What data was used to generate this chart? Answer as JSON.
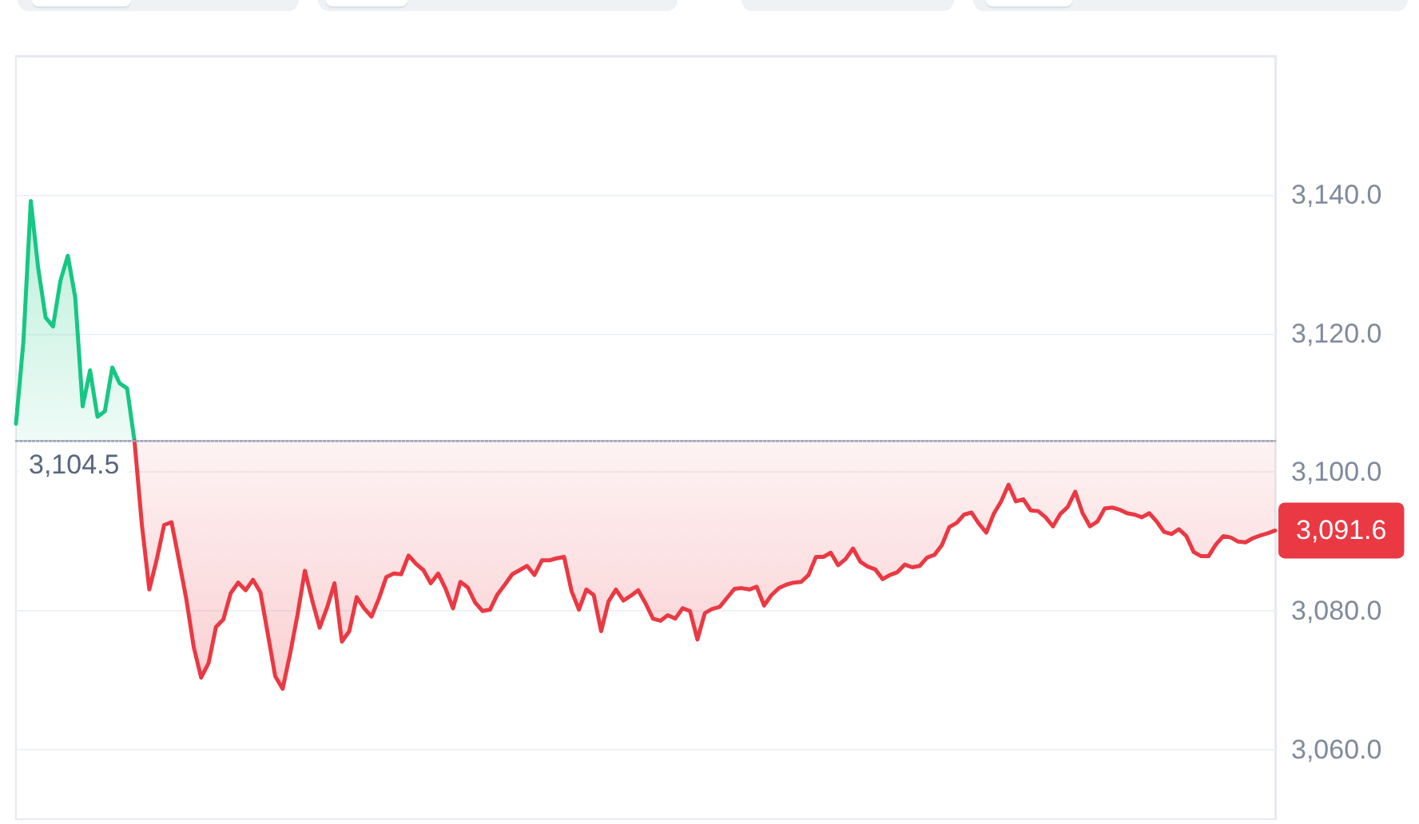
{
  "chart_data": {
    "type": "line",
    "categories": [
      null,
      null,
      null,
      null,
      null,
      null,
      null,
      null,
      null,
      null,
      null,
      null,
      null,
      null,
      null,
      null,
      null,
      null,
      null,
      null,
      null,
      null,
      null,
      null,
      null,
      null,
      null,
      null,
      null,
      null,
      null,
      null,
      null,
      null,
      null,
      null,
      null,
      null,
      null,
      null,
      null,
      null,
      null,
      null,
      null,
      null,
      null,
      null,
      null,
      null,
      null,
      null,
      null,
      null,
      null,
      null,
      null,
      null,
      null,
      null,
      null,
      null,
      null,
      null,
      null,
      null,
      null,
      null,
      null,
      null,
      null,
      null,
      null,
      null,
      null,
      null,
      null,
      null,
      null,
      null,
      null,
      null,
      null,
      null,
      null,
      null,
      null,
      null,
      null,
      null,
      null,
      null,
      null,
      null,
      null,
      null,
      null,
      null,
      null,
      null,
      null,
      null,
      null,
      null,
      null,
      null,
      null,
      null,
      null,
      null,
      null,
      null,
      null,
      null,
      null,
      null,
      null,
      null,
      null,
      null,
      null,
      null,
      null,
      null,
      null,
      null,
      null,
      null,
      null,
      null,
      null,
      null,
      null,
      null,
      null,
      null,
      null,
      null,
      null,
      null,
      null,
      null,
      null,
      null,
      null,
      null,
      null,
      null,
      null,
      null,
      null,
      null,
      null,
      null,
      null,
      null,
      null,
      null,
      null,
      null,
      null,
      null,
      null,
      null,
      null,
      null,
      null,
      null,
      null,
      null,
      null
    ],
    "series": [
      {
        "color": "#16c784",
        "values": [
          3107.0,
          3118.8,
          3139.1,
          3129.4,
          3122.3,
          3121.0,
          3127.6,
          3131.2,
          3125.2,
          3109.5,
          3114.7,
          3108.0,
          3108.8,
          3115.1,
          3112.8,
          3112.1,
          3104.5,
          null,
          null,
          null,
          null,
          null,
          null,
          null,
          null,
          null,
          null,
          null,
          null,
          null,
          null,
          null,
          null,
          null,
          null,
          null,
          null,
          null,
          null,
          null,
          null,
          null,
          null,
          null,
          null,
          null,
          null,
          null,
          null,
          null,
          null,
          null,
          null,
          null,
          null,
          null,
          null,
          null,
          null,
          null,
          null,
          null,
          null,
          null,
          null,
          null,
          null,
          null,
          null,
          null,
          null,
          null,
          null,
          null,
          null,
          null,
          null,
          null,
          null,
          null,
          null,
          null,
          null,
          null,
          null,
          null,
          null,
          null,
          null,
          null,
          null,
          null,
          null,
          null,
          null,
          null,
          null,
          null,
          null,
          null,
          null,
          null,
          null,
          null,
          null,
          null,
          null,
          null,
          null,
          null,
          null,
          null,
          null,
          null,
          null,
          null,
          null,
          null,
          null,
          null,
          null,
          null,
          null,
          null,
          null,
          null,
          null,
          null,
          null,
          null,
          null,
          null,
          null,
          null,
          null,
          null,
          null,
          null,
          null,
          null,
          null,
          null,
          null,
          null,
          null,
          null,
          null,
          null,
          null,
          null,
          null,
          null,
          null,
          null,
          null,
          null,
          null,
          null,
          null,
          null,
          null,
          null,
          null,
          null,
          null,
          null,
          null,
          null,
          null,
          null,
          null
        ],
        "lower": [
          3104.5,
          3104.5,
          3104.5,
          3104.5,
          3104.5,
          3104.5,
          3104.5,
          3104.5,
          3104.5,
          3104.5,
          3104.5,
          3104.5,
          3104.5,
          3104.5,
          3104.5,
          3104.5,
          3104.5,
          null,
          null,
          null,
          null,
          null,
          null,
          null,
          null,
          null,
          null,
          null,
          null,
          null,
          null,
          null,
          null,
          null,
          null,
          null,
          null,
          null,
          null,
          null,
          null,
          null,
          null,
          null,
          null,
          null,
          null,
          null,
          null,
          null,
          null,
          null,
          null,
          null,
          null,
          null,
          null,
          null,
          null,
          null,
          null,
          null,
          null,
          null,
          null,
          null,
          null,
          null,
          null,
          null,
          null,
          null,
          null,
          null,
          null,
          null,
          null,
          null,
          null,
          null,
          null,
          null,
          null,
          null,
          null,
          null,
          null,
          null,
          null,
          null,
          null,
          null,
          null,
          null,
          null,
          null,
          null,
          null,
          null,
          null,
          null,
          null,
          null,
          null,
          null,
          null,
          null,
          null,
          null,
          null,
          null,
          null,
          null,
          null,
          null,
          null,
          null,
          null,
          null,
          null,
          null,
          null,
          null,
          null,
          null,
          null,
          null,
          null,
          null,
          null,
          null,
          null,
          null,
          null,
          null,
          null,
          null,
          null,
          null,
          null,
          null,
          null,
          null,
          null,
          null,
          null,
          null,
          null,
          null,
          null,
          null,
          null,
          null,
          null,
          null,
          null,
          null,
          null,
          null,
          null,
          null,
          null,
          null,
          null,
          null,
          null,
          null,
          null,
          null,
          null,
          null
        ],
        "upper": [
          3107.0,
          3118.8,
          3139.1,
          3129.4,
          3122.3,
          3121.0,
          3127.6,
          3131.2,
          3125.2,
          3109.5,
          3114.7,
          3108.0,
          3108.8,
          3115.1,
          3112.8,
          3112.1,
          3104.5,
          null,
          null,
          null,
          null,
          null,
          null,
          null,
          null,
          null,
          null,
          null,
          null,
          null,
          null,
          null,
          null,
          null,
          null,
          null,
          null,
          null,
          null,
          null,
          null,
          null,
          null,
          null,
          null,
          null,
          null,
          null,
          null,
          null,
          null,
          null,
          null,
          null,
          null,
          null,
          null,
          null,
          null,
          null,
          null,
          null,
          null,
          null,
          null,
          null,
          null,
          null,
          null,
          null,
          null,
          null,
          null,
          null,
          null,
          null,
          null,
          null,
          null,
          null,
          null,
          null,
          null,
          null,
          null,
          null,
          null,
          null,
          null,
          null,
          null,
          null,
          null,
          null,
          null,
          null,
          null,
          null,
          null,
          null,
          null,
          null,
          null,
          null,
          null,
          null,
          null,
          null,
          null,
          null,
          null,
          null,
          null,
          null,
          null,
          null,
          null,
          null,
          null,
          null,
          null,
          null,
          null,
          null,
          null,
          null,
          null,
          null,
          null,
          null,
          null,
          null,
          null,
          null,
          null,
          null,
          null,
          null,
          null,
          null,
          null,
          null,
          null,
          null,
          null,
          null,
          null,
          null,
          null,
          null,
          null,
          null,
          null,
          null,
          null,
          null,
          null,
          null,
          null,
          null,
          null,
          null,
          null,
          null,
          null,
          null,
          null,
          null,
          null,
          null,
          null
        ]
      },
      {
        "color": "#ea3943",
        "values": [
          null,
          null,
          null,
          null,
          null,
          null,
          null,
          null,
          null,
          null,
          null,
          null,
          null,
          null,
          null,
          null,
          3104.5,
          3092.4,
          3083.1,
          3087.4,
          3092.4,
          3092.8,
          3087.3,
          3081.7,
          3074.8,
          3070.4,
          3072.5,
          3077.7,
          3078.8,
          3082.6,
          3084.1,
          3083.0,
          3084.5,
          3082.7,
          3076.7,
          3070.6,
          3068.8,
          3073.8,
          3079.4,
          3085.8,
          3081.5,
          3077.6,
          3080.5,
          3084.0,
          3075.6,
          3077.1,
          3082.0,
          3080.4,
          3079.2,
          3081.8,
          3084.9,
          3085.4,
          3085.3,
          3088.0,
          3086.8,
          3085.9,
          3084.0,
          3085.4,
          3083.2,
          3080.4,
          3084.2,
          3083.4,
          3081.2,
          3080.0,
          3080.2,
          3082.4,
          3083.8,
          3085.3,
          3085.9,
          3086.5,
          3085.2,
          3087.3,
          3087.3,
          3087.6,
          3087.8,
          3082.9,
          3080.2,
          3083.1,
          3082.3,
          3077.1,
          3081.4,
          3083.1,
          3081.5,
          3082.2,
          3083.0,
          3081.1,
          3078.9,
          3078.6,
          3079.4,
          3078.9,
          3080.4,
          3080.0,
          3075.9,
          3079.7,
          3080.3,
          3080.6,
          3081.9,
          3083.2,
          3083.3,
          3083.1,
          3083.5,
          3080.8,
          3082.3,
          3083.3,
          3083.8,
          3084.1,
          3084.2,
          3085.2,
          3087.8,
          3087.8,
          3088.4,
          3086.6,
          3087.5,
          3089.0,
          3087.1,
          3086.4,
          3086.0,
          3084.6,
          3085.2,
          3085.6,
          3086.7,
          3086.3,
          3086.5,
          3087.7,
          3088.1,
          3089.5,
          3092.1,
          3092.7,
          3093.9,
          3094.2,
          3092.6,
          3091.3,
          3094.0,
          3095.8,
          3098.2,
          3095.8,
          3096.1,
          3094.5,
          3094.4,
          3093.5,
          3092.2,
          3094.0,
          3095.0,
          3097.2,
          3094.1,
          3092.2,
          3092.9,
          3094.8,
          3094.9,
          3094.6,
          3094.1,
          3093.9,
          3093.5,
          3094.1,
          3092.9,
          3091.4,
          3091.1,
          3091.8,
          3090.8,
          3088.5,
          3087.9,
          3087.9,
          3089.6,
          3090.8,
          3090.6,
          3090.0,
          3089.9,
          3090.5,
          3090.9,
          3091.2,
          3091.6
        ],
        "lower": [
          null,
          null,
          null,
          null,
          null,
          null,
          null,
          null,
          null,
          null,
          null,
          null,
          null,
          null,
          null,
          null,
          3104.5,
          3092.4,
          3083.1,
          3087.4,
          3092.4,
          3092.8,
          3087.3,
          3081.7,
          3074.8,
          3070.4,
          3072.5,
          3077.7,
          3078.8,
          3082.6,
          3084.1,
          3083.0,
          3084.5,
          3082.7,
          3076.7,
          3070.6,
          3068.8,
          3073.8,
          3079.4,
          3085.8,
          3081.5,
          3077.6,
          3080.5,
          3084.0,
          3075.6,
          3077.1,
          3082.0,
          3080.4,
          3079.2,
          3081.8,
          3084.9,
          3085.4,
          3085.3,
          3088.0,
          3086.8,
          3085.9,
          3084.0,
          3085.4,
          3083.2,
          3080.4,
          3084.2,
          3083.4,
          3081.2,
          3080.0,
          3080.2,
          3082.4,
          3083.8,
          3085.3,
          3085.9,
          3086.5,
          3085.2,
          3087.3,
          3087.3,
          3087.6,
          3087.8,
          3082.9,
          3080.2,
          3083.1,
          3082.3,
          3077.1,
          3081.4,
          3083.1,
          3081.5,
          3082.2,
          3083.0,
          3081.1,
          3078.9,
          3078.6,
          3079.4,
          3078.9,
          3080.4,
          3080.0,
          3075.9,
          3079.7,
          3080.3,
          3080.6,
          3081.9,
          3083.2,
          3083.3,
          3083.1,
          3083.5,
          3080.8,
          3082.3,
          3083.3,
          3083.8,
          3084.1,
          3084.2,
          3085.2,
          3087.8,
          3087.8,
          3088.4,
          3086.6,
          3087.5,
          3089.0,
          3087.1,
          3086.4,
          3086.0,
          3084.6,
          3085.2,
          3085.6,
          3086.7,
          3086.3,
          3086.5,
          3087.7,
          3088.1,
          3089.5,
          3092.1,
          3092.7,
          3093.9,
          3094.2,
          3092.6,
          3091.3,
          3094.0,
          3095.8,
          3098.2,
          3095.8,
          3096.1,
          3094.5,
          3094.4,
          3093.5,
          3092.2,
          3094.0,
          3095.0,
          3097.2,
          3094.1,
          3092.2,
          3092.9,
          3094.8,
          3094.9,
          3094.6,
          3094.1,
          3093.9,
          3093.5,
          3094.1,
          3092.9,
          3091.4,
          3091.1,
          3091.8,
          3090.8,
          3088.5,
          3087.9,
          3087.9,
          3089.6,
          3090.8,
          3090.6,
          3090.0,
          3089.9,
          3090.5,
          3090.9,
          3091.2,
          3091.6
        ],
        "upper": [
          null,
          null,
          null,
          null,
          null,
          null,
          null,
          null,
          null,
          null,
          null,
          null,
          null,
          null,
          null,
          null,
          3104.5,
          3104.5,
          3104.5,
          3104.5,
          3104.5,
          3104.5,
          3104.5,
          3104.5,
          3104.5,
          3104.5,
          3104.5,
          3104.5,
          3104.5,
          3104.5,
          3104.5,
          3104.5,
          3104.5,
          3104.5,
          3104.5,
          3104.5,
          3104.5,
          3104.5,
          3104.5,
          3104.5,
          3104.5,
          3104.5,
          3104.5,
          3104.5,
          3104.5,
          3104.5,
          3104.5,
          3104.5,
          3104.5,
          3104.5,
          3104.5,
          3104.5,
          3104.5,
          3104.5,
          3104.5,
          3104.5,
          3104.5,
          3104.5,
          3104.5,
          3104.5,
          3104.5,
          3104.5,
          3104.5,
          3104.5,
          3104.5,
          3104.5,
          3104.5,
          3104.5,
          3104.5,
          3104.5,
          3104.5,
          3104.5,
          3104.5,
          3104.5,
          3104.5,
          3104.5,
          3104.5,
          3104.5,
          3104.5,
          3104.5,
          3104.5,
          3104.5,
          3104.5,
          3104.5,
          3104.5,
          3104.5,
          3104.5,
          3104.5,
          3104.5,
          3104.5,
          3104.5,
          3104.5,
          3104.5,
          3104.5,
          3104.5,
          3104.5,
          3104.5,
          3104.5,
          3104.5,
          3104.5,
          3104.5,
          3104.5,
          3104.5,
          3104.5,
          3104.5,
          3104.5,
          3104.5,
          3104.5,
          3104.5,
          3104.5,
          3104.5,
          3104.5,
          3104.5,
          3104.5,
          3104.5,
          3104.5,
          3104.5,
          3104.5,
          3104.5,
          3104.5,
          3104.5,
          3104.5,
          3104.5,
          3104.5,
          3104.5,
          3104.5,
          3104.5,
          3104.5,
          3104.5,
          3104.5,
          3104.5,
          3104.5,
          3104.5,
          3104.5,
          3104.5,
          3104.5,
          3104.5,
          3104.5,
          3104.5,
          3104.5,
          3104.5,
          3104.5,
          3104.5,
          3104.5,
          3104.5,
          3104.5,
          3104.5,
          3104.5,
          3104.5,
          3104.5,
          3104.5,
          3104.5,
          3104.5,
          3104.5,
          3104.5,
          3104.5,
          3104.5,
          3104.5,
          3104.5,
          3104.5,
          3104.5,
          3104.5,
          3104.5,
          3104.5,
          3104.5,
          3104.5,
          3104.5,
          3104.5,
          3104.5,
          3104.5,
          3104.5
        ],
        "value_labels": [
          null,
          null,
          null,
          null,
          null,
          null,
          null,
          null,
          null,
          null,
          null,
          null,
          null,
          null,
          null,
          null,
          null,
          null,
          null,
          null,
          null,
          null,
          null,
          null,
          null,
          null,
          null,
          null,
          null,
          null,
          null,
          null,
          null,
          null,
          null,
          null,
          null,
          null,
          null,
          null,
          null,
          null,
          null,
          null,
          null,
          null,
          null,
          null,
          null,
          null,
          null,
          null,
          null,
          null,
          null,
          null,
          null,
          null,
          null,
          null,
          null,
          null,
          null,
          null,
          null,
          null,
          null,
          null,
          null,
          null,
          null,
          null,
          null,
          null,
          null,
          null,
          null,
          null,
          null,
          null,
          null,
          null,
          null,
          null,
          null,
          null,
          null,
          null,
          null,
          null,
          null,
          null,
          null,
          null,
          null,
          null,
          null,
          null,
          null,
          null,
          null,
          null,
          null,
          null,
          null,
          null,
          null,
          null,
          null,
          null,
          null,
          null,
          null,
          null,
          null,
          null,
          null,
          null,
          null,
          null,
          null,
          null,
          null,
          null,
          null,
          null,
          null,
          null,
          null,
          null,
          null,
          null,
          null,
          null,
          null,
          null,
          null,
          null,
          null,
          null,
          null,
          null,
          null,
          null,
          null,
          null,
          null,
          null,
          null,
          null,
          null,
          null,
          null,
          null,
          null,
          null,
          null,
          null,
          null,
          null,
          null,
          null,
          null,
          null,
          null,
          null,
          null,
          null,
          null,
          null,
          "3,091.6"
        ]
      },
      {
        "color": "#a1a7bb",
        "line_style": "dotted",
        "values": [
          3104.5,
          3104.5,
          3104.5,
          3104.5,
          3104.5,
          3104.5,
          3104.5,
          3104.5,
          3104.5,
          3104.5,
          3104.5,
          3104.5,
          3104.5,
          3104.5,
          3104.5,
          3104.5,
          3104.5,
          3104.5,
          3104.5,
          3104.5,
          3104.5,
          3104.5,
          3104.5,
          3104.5,
          3104.5,
          3104.5,
          3104.5,
          3104.5,
          3104.5,
          3104.5,
          3104.5,
          3104.5,
          3104.5,
          3104.5,
          3104.5,
          3104.5,
          3104.5,
          3104.5,
          3104.5,
          3104.5,
          3104.5,
          3104.5,
          3104.5,
          3104.5,
          3104.5,
          3104.5,
          3104.5,
          3104.5,
          3104.5,
          3104.5,
          3104.5,
          3104.5,
          3104.5,
          3104.5,
          3104.5,
          3104.5,
          3104.5,
          3104.5,
          3104.5,
          3104.5,
          3104.5,
          3104.5,
          3104.5,
          3104.5,
          3104.5,
          3104.5,
          3104.5,
          3104.5,
          3104.5,
          3104.5,
          3104.5,
          3104.5,
          3104.5,
          3104.5,
          3104.5,
          3104.5,
          3104.5,
          3104.5,
          3104.5,
          3104.5,
          3104.5,
          3104.5,
          3104.5,
          3104.5,
          3104.5,
          3104.5,
          3104.5,
          3104.5,
          3104.5,
          3104.5,
          3104.5,
          3104.5,
          3104.5,
          3104.5,
          3104.5,
          3104.5,
          3104.5,
          3104.5,
          3104.5,
          3104.5,
          3104.5,
          3104.5,
          3104.5,
          3104.5,
          3104.5,
          3104.5,
          3104.5,
          3104.5,
          3104.5,
          3104.5,
          3104.5,
          3104.5,
          3104.5,
          3104.5,
          3104.5,
          3104.5,
          3104.5,
          3104.5,
          3104.5,
          3104.5,
          3104.5,
          3104.5,
          3104.5,
          3104.5,
          3104.5,
          3104.5,
          3104.5,
          3104.5,
          3104.5,
          3104.5,
          3104.5,
          3104.5,
          3104.5,
          3104.5,
          3104.5,
          3104.5,
          3104.5,
          3104.5,
          3104.5,
          3104.5,
          3104.5,
          3104.5,
          3104.5,
          3104.5,
          3104.5,
          3104.5,
          3104.5,
          3104.5,
          3104.5,
          3104.5,
          3104.5,
          3104.5,
          3104.5,
          3104.5,
          3104.5,
          3104.5,
          3104.5,
          3104.5,
          3104.5,
          3104.5,
          3104.5,
          3104.5,
          3104.5,
          3104.5,
          3104.5,
          3104.5,
          3104.5,
          3104.5,
          3104.5,
          3104.5,
          3104.5
        ],
        "value_labels": [
          "3,104.5",
          null,
          null,
          null,
          null,
          null,
          null,
          null,
          null,
          null,
          null,
          null,
          null,
          null,
          null,
          null,
          null,
          null,
          null,
          null,
          null,
          null,
          null,
          null,
          null,
          null,
          null,
          null,
          null,
          null,
          null,
          null,
          null,
          null,
          null,
          null,
          null,
          null,
          null,
          null,
          null,
          null,
          null,
          null,
          null,
          null,
          null,
          null,
          null,
          null,
          null,
          null,
          null,
          null,
          null,
          null,
          null,
          null,
          null,
          null,
          null,
          null,
          null,
          null,
          null,
          null,
          null,
          null,
          null,
          null,
          null,
          null,
          null,
          null,
          null,
          null,
          null,
          null,
          null,
          null,
          null,
          null,
          null,
          null,
          null,
          null,
          null,
          null,
          null,
          null,
          null,
          null,
          null,
          null,
          null,
          null,
          null,
          null,
          null,
          null,
          null,
          null,
          null,
          null,
          null,
          null,
          null,
          null,
          null,
          null,
          null,
          null,
          null,
          null,
          null,
          null,
          null,
          null,
          null,
          null,
          null,
          null,
          null,
          null,
          null,
          null,
          null,
          null,
          null,
          null,
          null,
          null,
          null,
          null,
          null,
          null,
          null,
          null,
          null,
          null,
          null,
          null,
          null,
          null,
          null,
          null,
          null,
          null,
          null,
          null,
          null,
          null,
          null,
          null,
          null,
          null,
          null,
          null,
          null,
          null,
          null,
          null,
          null,
          null,
          null,
          null,
          null,
          null,
          null,
          null,
          null
        ]
      }
    ],
    "ylim": [
      3050,
      3160
    ],
    "yticks": [
      {
        "value": 3060,
        "label": "3,060.0"
      },
      {
        "value": 3080,
        "label": "3,080.0"
      },
      {
        "value": 3100,
        "label": "3,100.0"
      },
      {
        "value": 3120,
        "label": "3,120.0"
      },
      {
        "value": 3140,
        "label": "3,140.0"
      }
    ],
    "grid": "y",
    "tick_labels": "y"
  }
}
